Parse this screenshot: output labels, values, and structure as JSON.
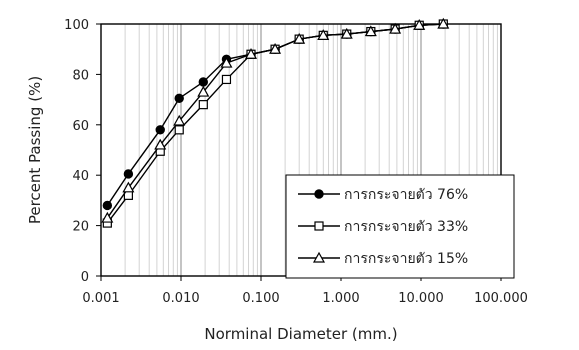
{
  "chart_data": {
    "type": "line",
    "xlabel": "Norminal Diameter (mm.)",
    "ylabel": "Percent Passing (%)",
    "x_scale": "log",
    "xlim": [
      0.001,
      100
    ],
    "ylim": [
      0,
      100
    ],
    "x_ticks": [
      "0.001",
      "0.010",
      "0.100",
      "1.000",
      "10.000",
      "100.000"
    ],
    "y_ticks": [
      "0",
      "20",
      "40",
      "60",
      "80",
      "100"
    ],
    "grid": "vertical minor log gridlines",
    "legend_position": "bottom-right",
    "series": [
      {
        "name": "การกระจายตัว 76%",
        "marker": "filled-circle",
        "x": [
          0.0012,
          0.0022,
          0.0055,
          0.0095,
          0.019,
          0.037,
          0.075,
          0.15,
          0.3,
          0.6,
          1.18,
          2.36,
          4.75,
          9.5,
          19
        ],
        "y": [
          28,
          40.5,
          58,
          70.5,
          77,
          86,
          88,
          90,
          94,
          95.5,
          96,
          97,
          98,
          99.5,
          100
        ]
      },
      {
        "name": "การกระจายตัว 33%",
        "marker": "open-square",
        "x": [
          0.0012,
          0.0022,
          0.0055,
          0.0095,
          0.019,
          0.037,
          0.075,
          0.15,
          0.3,
          0.6,
          1.18,
          2.36,
          4.75,
          9.5,
          19
        ],
        "y": [
          21,
          32,
          49.5,
          58,
          68,
          78,
          88,
          90,
          94,
          95.5,
          96,
          97,
          98,
          99.5,
          100
        ]
      },
      {
        "name": "การกระจายตัว 15%",
        "marker": "open-triangle",
        "x": [
          0.0012,
          0.0022,
          0.0055,
          0.0095,
          0.019,
          0.037,
          0.075,
          0.15,
          0.3,
          0.6,
          1.18,
          2.36,
          4.75,
          9.5,
          19
        ],
        "y": [
          23,
          35,
          52,
          61.5,
          73,
          84.5,
          88,
          90,
          94,
          95.5,
          96,
          97,
          98,
          99.5,
          100
        ]
      }
    ]
  }
}
